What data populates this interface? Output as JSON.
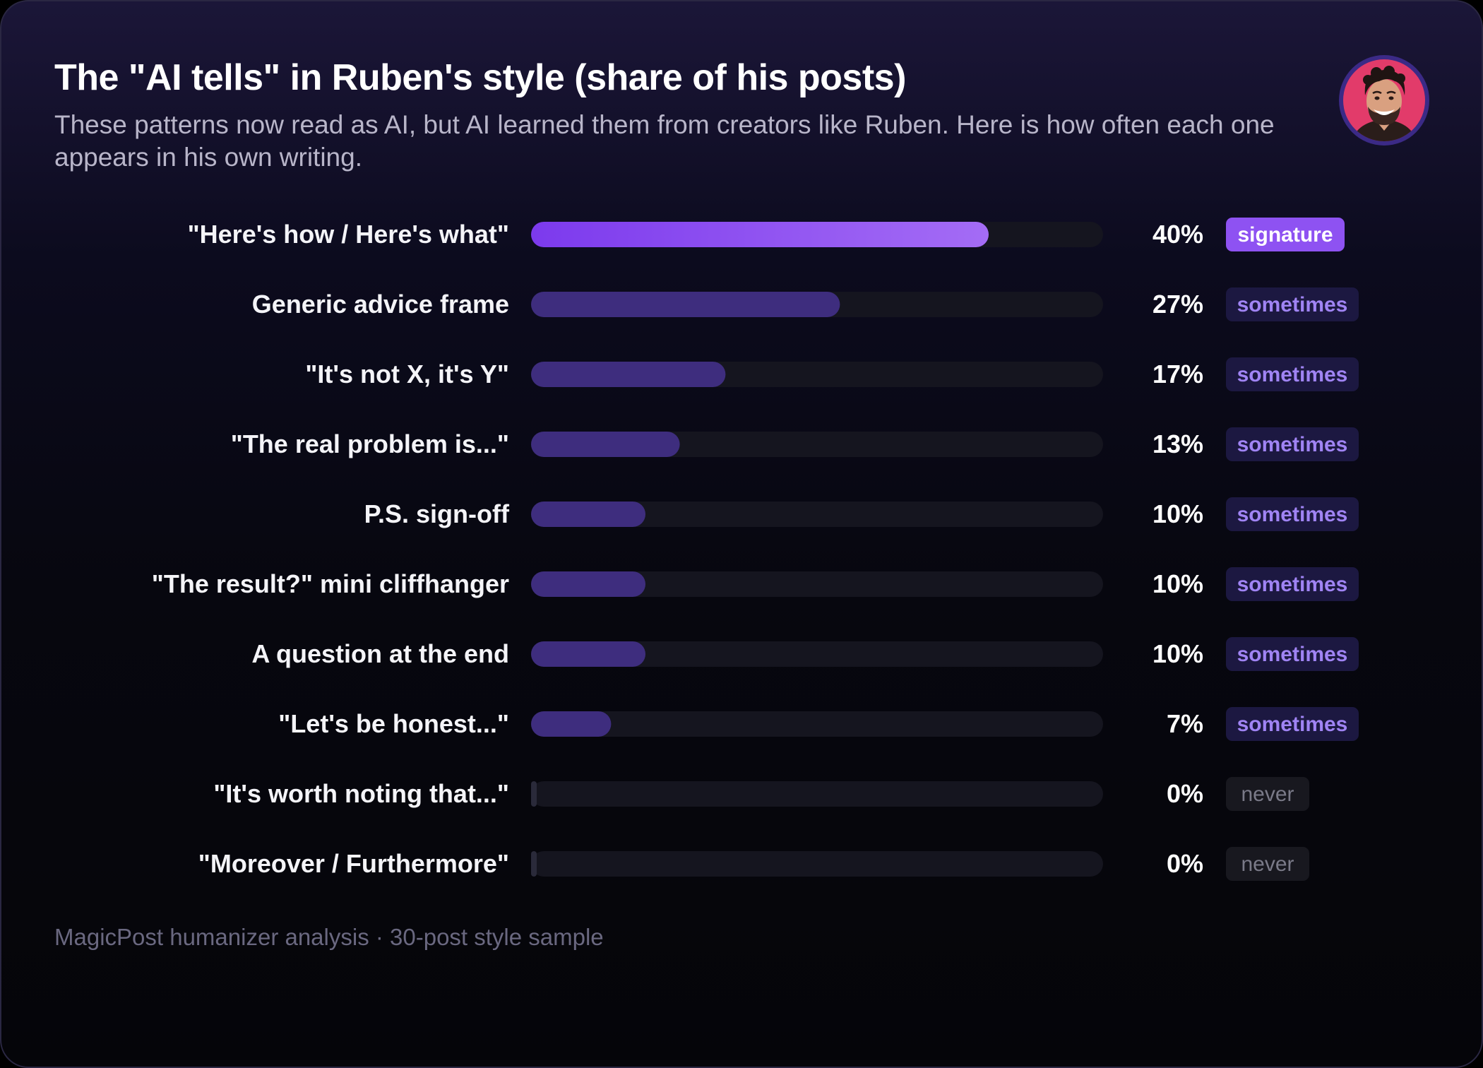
{
  "header": {
    "title": "The \"AI tells\" in Ruben's style (share of his posts)",
    "subtitle": "These patterns now read as AI, but AI learned them from creators like Ruben. Here is how often each one appears in his own writing."
  },
  "avatar": {
    "icon": "person-portrait-icon"
  },
  "footer": {
    "text": "MagicPost humanizer analysis · 30-post style sample"
  },
  "colors": {
    "signature_bar_start": "#7c3aed",
    "signature_bar_end": "#a46cf5",
    "sometimes_bar": "#3e2d7e",
    "never_bar": "#2a2a3a",
    "track": "#15151f",
    "badge_signature_bg": "#8e52f2",
    "badge_sometimes_bg": "#1c1841",
    "badge_sometimes_text": "#a084f4",
    "badge_never_bg": "#18181f",
    "badge_never_text": "#7a7a88"
  },
  "chart_data": {
    "type": "bar",
    "orientation": "horizontal",
    "title": "The \"AI tells\" in Ruben's style (share of his posts)",
    "xlim": [
      0,
      100
    ],
    "unit": "%",
    "categories": [
      "\"Here's how / Here's what\"",
      "Generic advice frame",
      "\"It's not X, it's Y\"",
      "\"The real problem is...\"",
      "P.S. sign-off",
      "\"The result?\" mini cliffhanger",
      "A question at the end",
      "\"Let's be honest...\"",
      "\"It's worth noting that...\"",
      "\"Moreover / Furthermore\""
    ],
    "values": [
      40,
      27,
      17,
      13,
      10,
      10,
      10,
      7,
      0,
      0
    ],
    "value_labels": [
      "40%",
      "27%",
      "17%",
      "13%",
      "10%",
      "10%",
      "10%",
      "7%",
      "0%",
      "0%"
    ],
    "badges": [
      "signature",
      "sometimes",
      "sometimes",
      "sometimes",
      "sometimes",
      "sometimes",
      "sometimes",
      "sometimes",
      "never",
      "never"
    ],
    "grid": false,
    "legend": "none"
  }
}
